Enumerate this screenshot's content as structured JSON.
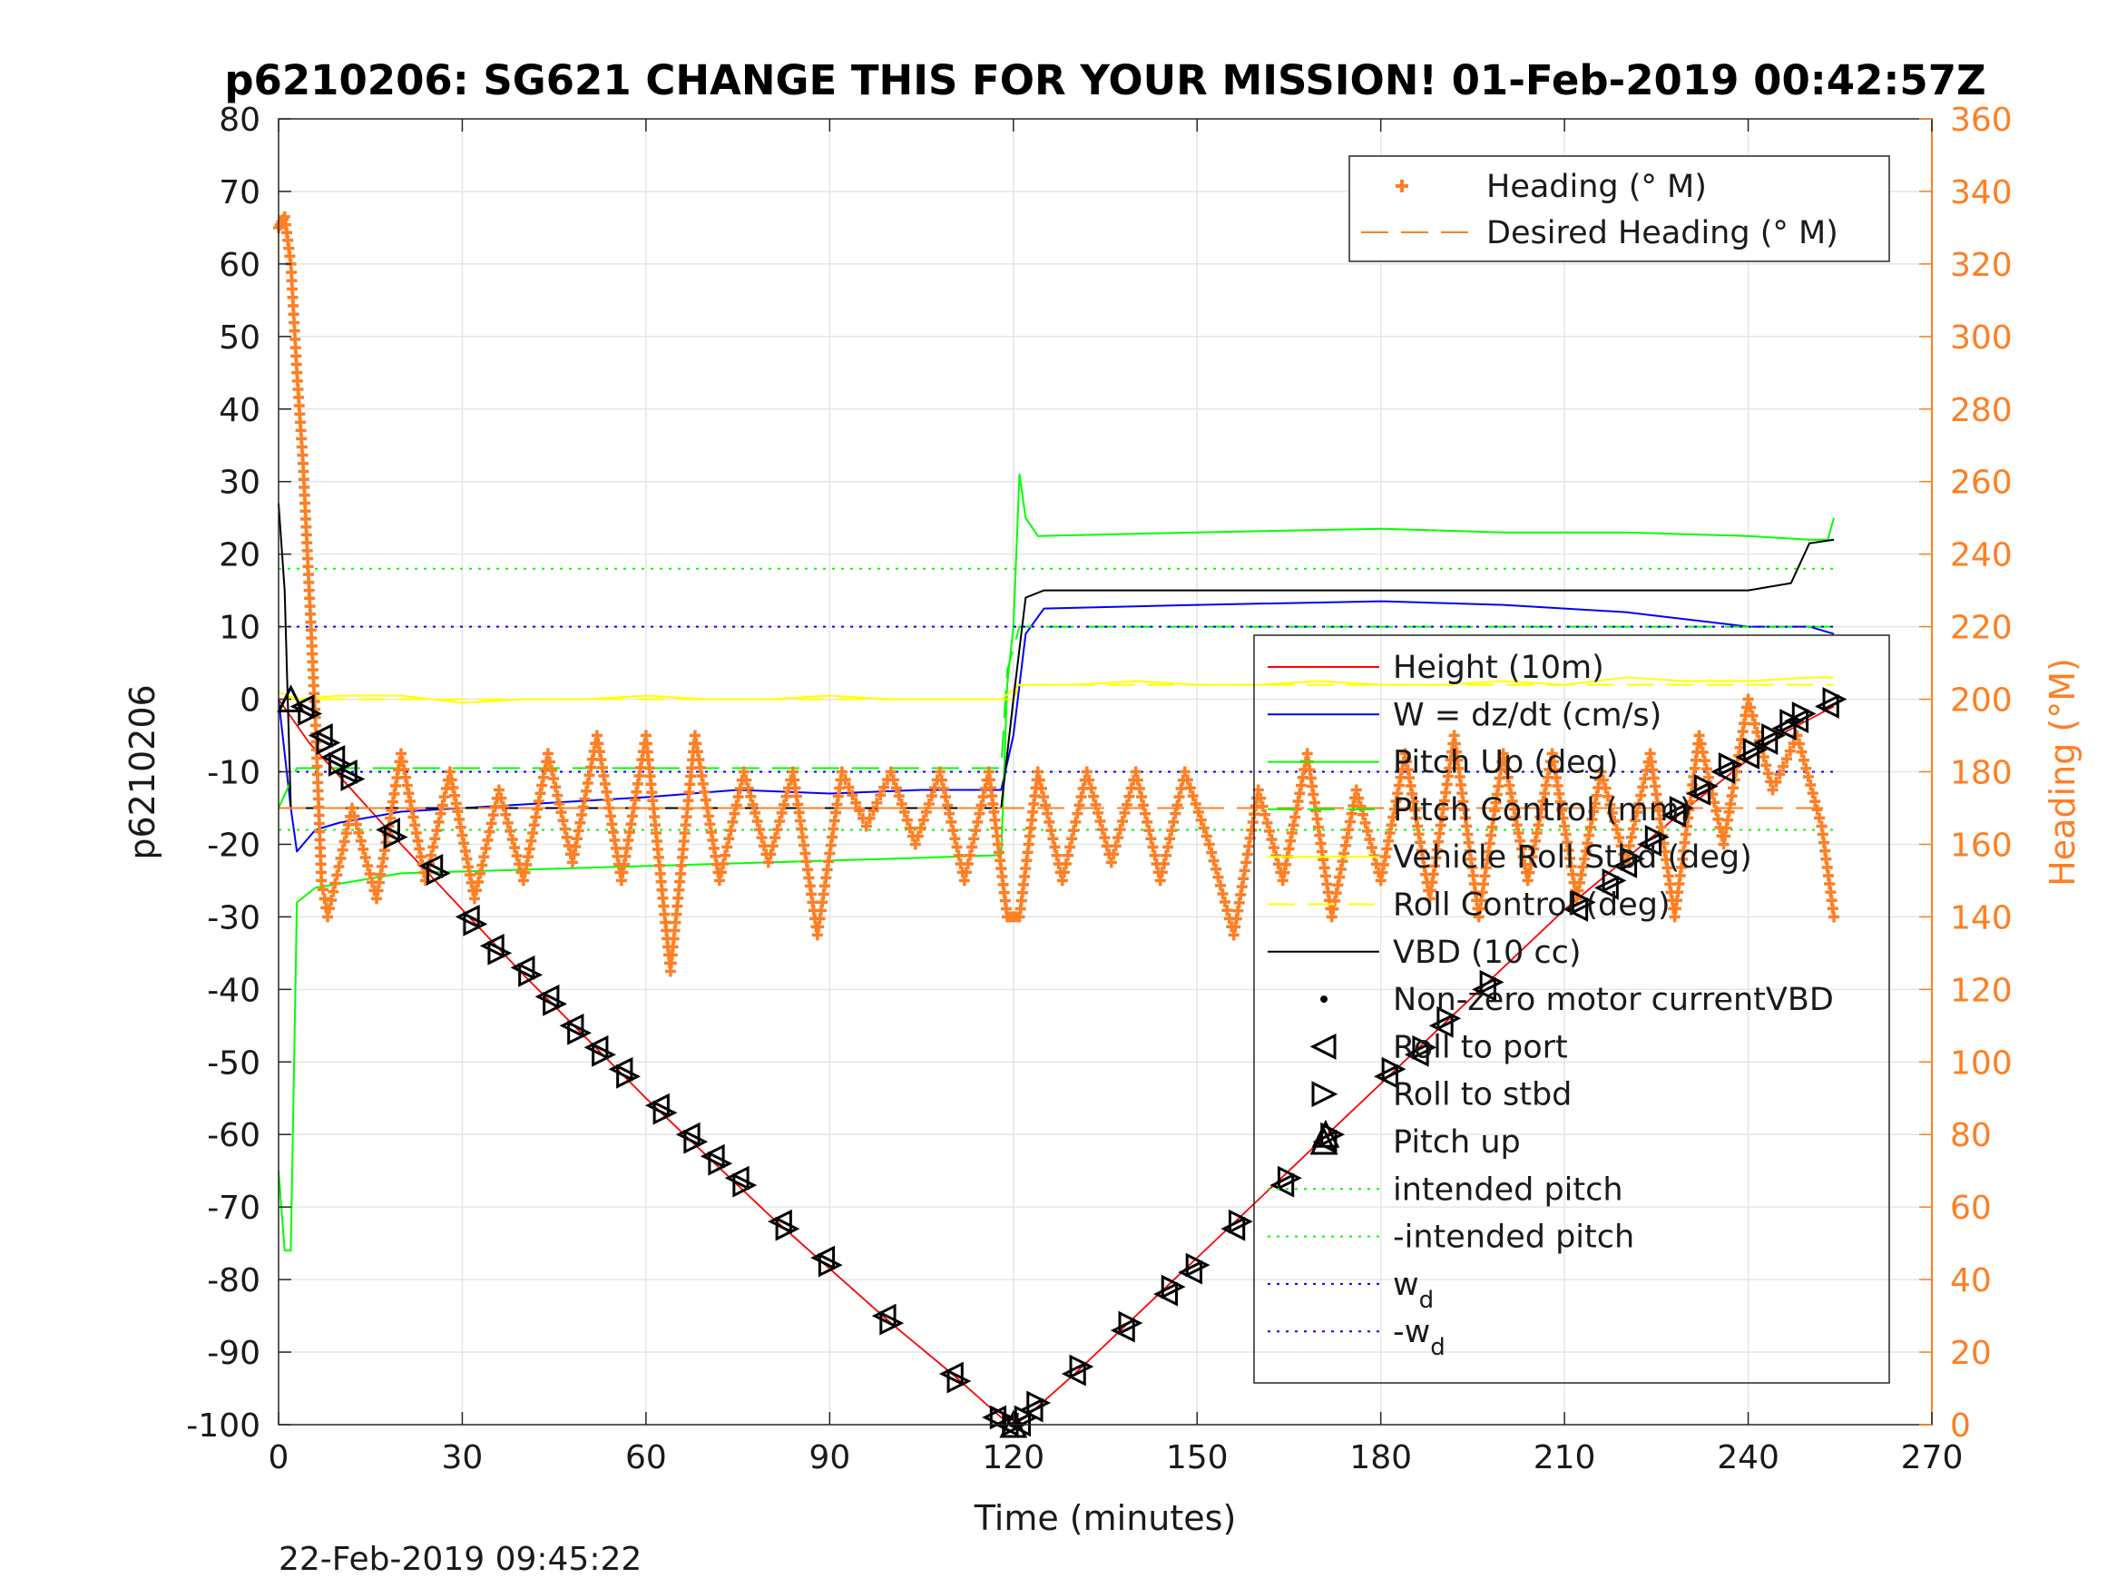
{
  "chart_data": {
    "type": "line",
    "title": "p6210206: SG621 CHANGE THIS FOR YOUR MISSION! 01-Feb-2019 00:42:57Z",
    "xlabel": "Time (minutes)",
    "ylabel": "p6210206",
    "ylabel_right": "Heading (°M)",
    "xlim": [
      0,
      270
    ],
    "ylim": [
      -100,
      80
    ],
    "ylim_right": [
      0,
      360
    ],
    "x_ticks": [
      "0",
      "30",
      "60",
      "90",
      "120",
      "150",
      "180",
      "210",
      "240",
      "270"
    ],
    "y_ticks": [
      "80",
      "70",
      "60",
      "50",
      "40",
      "30",
      "20",
      "10",
      "0",
      "-10",
      "-20",
      "-30",
      "-40",
      "-50",
      "-60",
      "-70",
      "-80",
      "-90",
      "-100"
    ],
    "y_ticks_right": [
      "360",
      "340",
      "320",
      "300",
      "280",
      "260",
      "240",
      "220",
      "200",
      "180",
      "160",
      "140",
      "120",
      "100",
      "80",
      "60",
      "40",
      "20",
      "0"
    ],
    "grid": true,
    "timestamp": "22-Feb-2019 09:45:22",
    "colors": {
      "height": "#ff0000",
      "w": "#0000ff",
      "pitch": "#00ff00",
      "roll": "#ffff00",
      "vbd": "#000000",
      "heading": "#ff7f24",
      "desired_heading": "#ff7f24"
    },
    "legends": {
      "heading": {
        "placement": "top-right",
        "entries": [
          "Heading (° M)",
          "Desired Heading (° M)"
        ]
      },
      "main": {
        "placement": "center-right",
        "entries": [
          "Height (10m)",
          "W = dz/dt (cm/s)",
          "Pitch Up (deg)",
          "Pitch Control (mm)",
          "Vehicle Roll Stbd (deg)",
          "Roll Control (deg)",
          "VBD (10 cc)",
          "Non-zero motor currentVBD",
          "Roll to port",
          "Roll to stbd",
          "Pitch up",
          "intended pitch",
          "-intended pitch",
          "w",
          "-w"
        ],
        "subscript": "d"
      }
    },
    "series": [
      {
        "name": "Height (10m)",
        "x": [
          0,
          5,
          20,
          40,
          60,
          80,
          100,
          110,
          118,
          120,
          122,
          130,
          150,
          170,
          190,
          210,
          230,
          245,
          254
        ],
        "y": [
          0,
          -6,
          -20,
          -38,
          -55,
          -71,
          -86,
          -93,
          -99,
          -100,
          -99,
          -93,
          -77,
          -61,
          -45,
          -29,
          -15,
          -5,
          -1
        ]
      },
      {
        "name": "W = dz/dt (cm/s)",
        "x": [
          0,
          2,
          3,
          6,
          10,
          20,
          40,
          60,
          75,
          90,
          105,
          118,
          120,
          122,
          125,
          150,
          180,
          200,
          220,
          240,
          250,
          254
        ],
        "y": [
          0,
          -15,
          -21,
          -18,
          -17,
          -15.5,
          -14.5,
          -13.5,
          -12.5,
          -13,
          -12.5,
          -12.5,
          -5,
          9,
          12.5,
          13,
          13.5,
          13,
          12,
          10,
          10,
          9
        ]
      },
      {
        "name": "Pitch Up (deg)",
        "x": [
          0,
          1,
          2,
          3,
          6,
          20,
          40,
          60,
          80,
          100,
          118,
          119,
          120,
          121,
          122,
          124,
          150,
          180,
          200,
          220,
          240,
          250,
          253,
          254
        ],
        "y": [
          -65,
          -76,
          -76,
          -28,
          -26,
          -24,
          -23.5,
          -23,
          -22.5,
          -22,
          -21.5,
          2,
          10,
          31,
          25,
          22.5,
          23,
          23.5,
          23,
          23,
          22.5,
          22,
          22,
          25
        ]
      },
      {
        "name": "Pitch Control (mm)",
        "x": [
          0,
          3,
          10,
          40,
          80,
          118,
          119,
          121,
          150,
          190,
          230,
          254
        ],
        "y": [
          -15,
          -9.5,
          -9.5,
          -9.5,
          -9.5,
          -9.5,
          4,
          10,
          10,
          10,
          10,
          10
        ]
      },
      {
        "name": "Vehicle Roll Stbd (deg)",
        "x": [
          0,
          3,
          10,
          20,
          30,
          40,
          50,
          60,
          70,
          80,
          90,
          100,
          110,
          118,
          121,
          130,
          140,
          150,
          160,
          170,
          180,
          190,
          200,
          210,
          220,
          230,
          240,
          250,
          254
        ],
        "y": [
          1,
          0,
          0.5,
          0.5,
          -0.5,
          0,
          0,
          0.5,
          0,
          0,
          0.5,
          0,
          0,
          0,
          2,
          2,
          2.5,
          2,
          2,
          2.5,
          2,
          2,
          2.5,
          2,
          3,
          2.5,
          2.5,
          3,
          3
        ]
      },
      {
        "name": "Roll Control (deg)",
        "x": [
          0,
          120,
          121,
          254
        ],
        "y": [
          0,
          0,
          2,
          2
        ]
      },
      {
        "name": "VBD (10 cc)",
        "x": [
          0,
          1,
          2,
          118,
          120,
          122,
          125,
          150,
          180,
          210,
          240,
          247,
          250,
          254
        ],
        "y": [
          27,
          15,
          -15,
          -15,
          0,
          14,
          15,
          15,
          15,
          15,
          15,
          16,
          21.5,
          22
        ]
      },
      {
        "name": "intended pitch",
        "x": [
          0,
          254
        ],
        "y": [
          18,
          18
        ]
      },
      {
        "name": "-intended pitch",
        "x": [
          0,
          254
        ],
        "y": [
          -18,
          -18
        ]
      },
      {
        "name": "w_d",
        "x": [
          0,
          254
        ],
        "y": [
          10,
          10
        ]
      },
      {
        "name": "-w_d",
        "x": [
          0,
          254
        ],
        "y": [
          -10,
          -10
        ]
      }
    ],
    "heading_series": {
      "name": "Heading (° M)",
      "x": [
        0,
        1,
        2,
        3,
        4,
        5,
        6,
        7,
        8,
        12,
        16,
        20,
        24,
        28,
        32,
        36,
        40,
        44,
        48,
        52,
        56,
        60,
        64,
        68,
        72,
        76,
        80,
        84,
        88,
        92,
        96,
        100,
        104,
        108,
        112,
        116,
        119,
        121,
        124,
        128,
        132,
        136,
        140,
        144,
        148,
        152,
        156,
        160,
        164,
        168,
        172,
        176,
        180,
        184,
        188,
        192,
        196,
        200,
        204,
        208,
        212,
        216,
        220,
        224,
        228,
        232,
        236,
        240,
        244,
        248,
        252,
        254
      ],
      "y": [
        330,
        333,
        320,
        290,
        265,
        230,
        195,
        150,
        140,
        170,
        145,
        185,
        150,
        180,
        145,
        175,
        150,
        185,
        155,
        190,
        150,
        190,
        125,
        190,
        150,
        180,
        155,
        180,
        135,
        180,
        165,
        180,
        160,
        180,
        150,
        180,
        140,
        140,
        180,
        150,
        180,
        155,
        180,
        150,
        180,
        160,
        135,
        175,
        150,
        185,
        140,
        175,
        150,
        185,
        145,
        190,
        140,
        185,
        150,
        185,
        145,
        180,
        155,
        185,
        140,
        190,
        160,
        200,
        175,
        190,
        165,
        140
      ]
    },
    "desired_heading_series": {
      "name": "Desired Heading (° M)",
      "x": [
        0,
        254
      ],
      "y": [
        170,
        170
      ]
    },
    "markers": {
      "roll_to_port": {
        "x": [
          4,
          7,
          9,
          11,
          18,
          25,
          31,
          35,
          40,
          44,
          48,
          52,
          56,
          62,
          67,
          71,
          75,
          82,
          89,
          99,
          110,
          117,
          119,
          121,
          123,
          130,
          138,
          145,
          149,
          156,
          164,
          171,
          181,
          186,
          190,
          197,
          212,
          217,
          220,
          224,
          228,
          232,
          236,
          240,
          243,
          246,
          248,
          253
        ],
        "y": [
          -1,
          -5,
          -8,
          -10,
          -18,
          -23,
          -30,
          -34,
          -37,
          -41,
          -45,
          -48,
          -51,
          -56,
          -60,
          -63,
          -66,
          -72,
          -77,
          -85,
          -93,
          -99,
          -100,
          -100,
          -98,
          -93,
          -87,
          -82,
          -79,
          -73,
          -67,
          -61,
          -52,
          -49,
          -45,
          -40,
          -29,
          -26,
          -23,
          -20,
          -16,
          -13,
          -10,
          -8,
          -6,
          -4,
          -3,
          -1
        ]
      },
      "roll_to_stbd": {
        "x": [
          5,
          8,
          10,
          12,
          19,
          26,
          32,
          36,
          41,
          45,
          49,
          53,
          57,
          63,
          68,
          72,
          76,
          83,
          90,
          100,
          111,
          118,
          120,
          122,
          124,
          131,
          139,
          146,
          150,
          157,
          165,
          172,
          182,
          187,
          191,
          198,
          213,
          218,
          221,
          225,
          229,
          233,
          237,
          241,
          244,
          247,
          249,
          254
        ],
        "y": [
          -2,
          -6,
          -9,
          -11,
          -19,
          -24,
          -31,
          -35,
          -38,
          -42,
          -46,
          -49,
          -52,
          -57,
          -61,
          -64,
          -67,
          -73,
          -78,
          -86,
          -94,
          -99,
          -100,
          -99,
          -97,
          -92,
          -86,
          -81,
          -78,
          -72,
          -66,
          -60,
          -51,
          -48,
          -44,
          -39,
          -28,
          -25,
          -22,
          -19,
          -15,
          -12,
          -9,
          -7,
          -5,
          -3,
          -2,
          0
        ]
      },
      "pitch_up": {
        "x": [
          2,
          120,
          171
        ],
        "y": [
          0,
          -100,
          -60
        ]
      }
    }
  }
}
